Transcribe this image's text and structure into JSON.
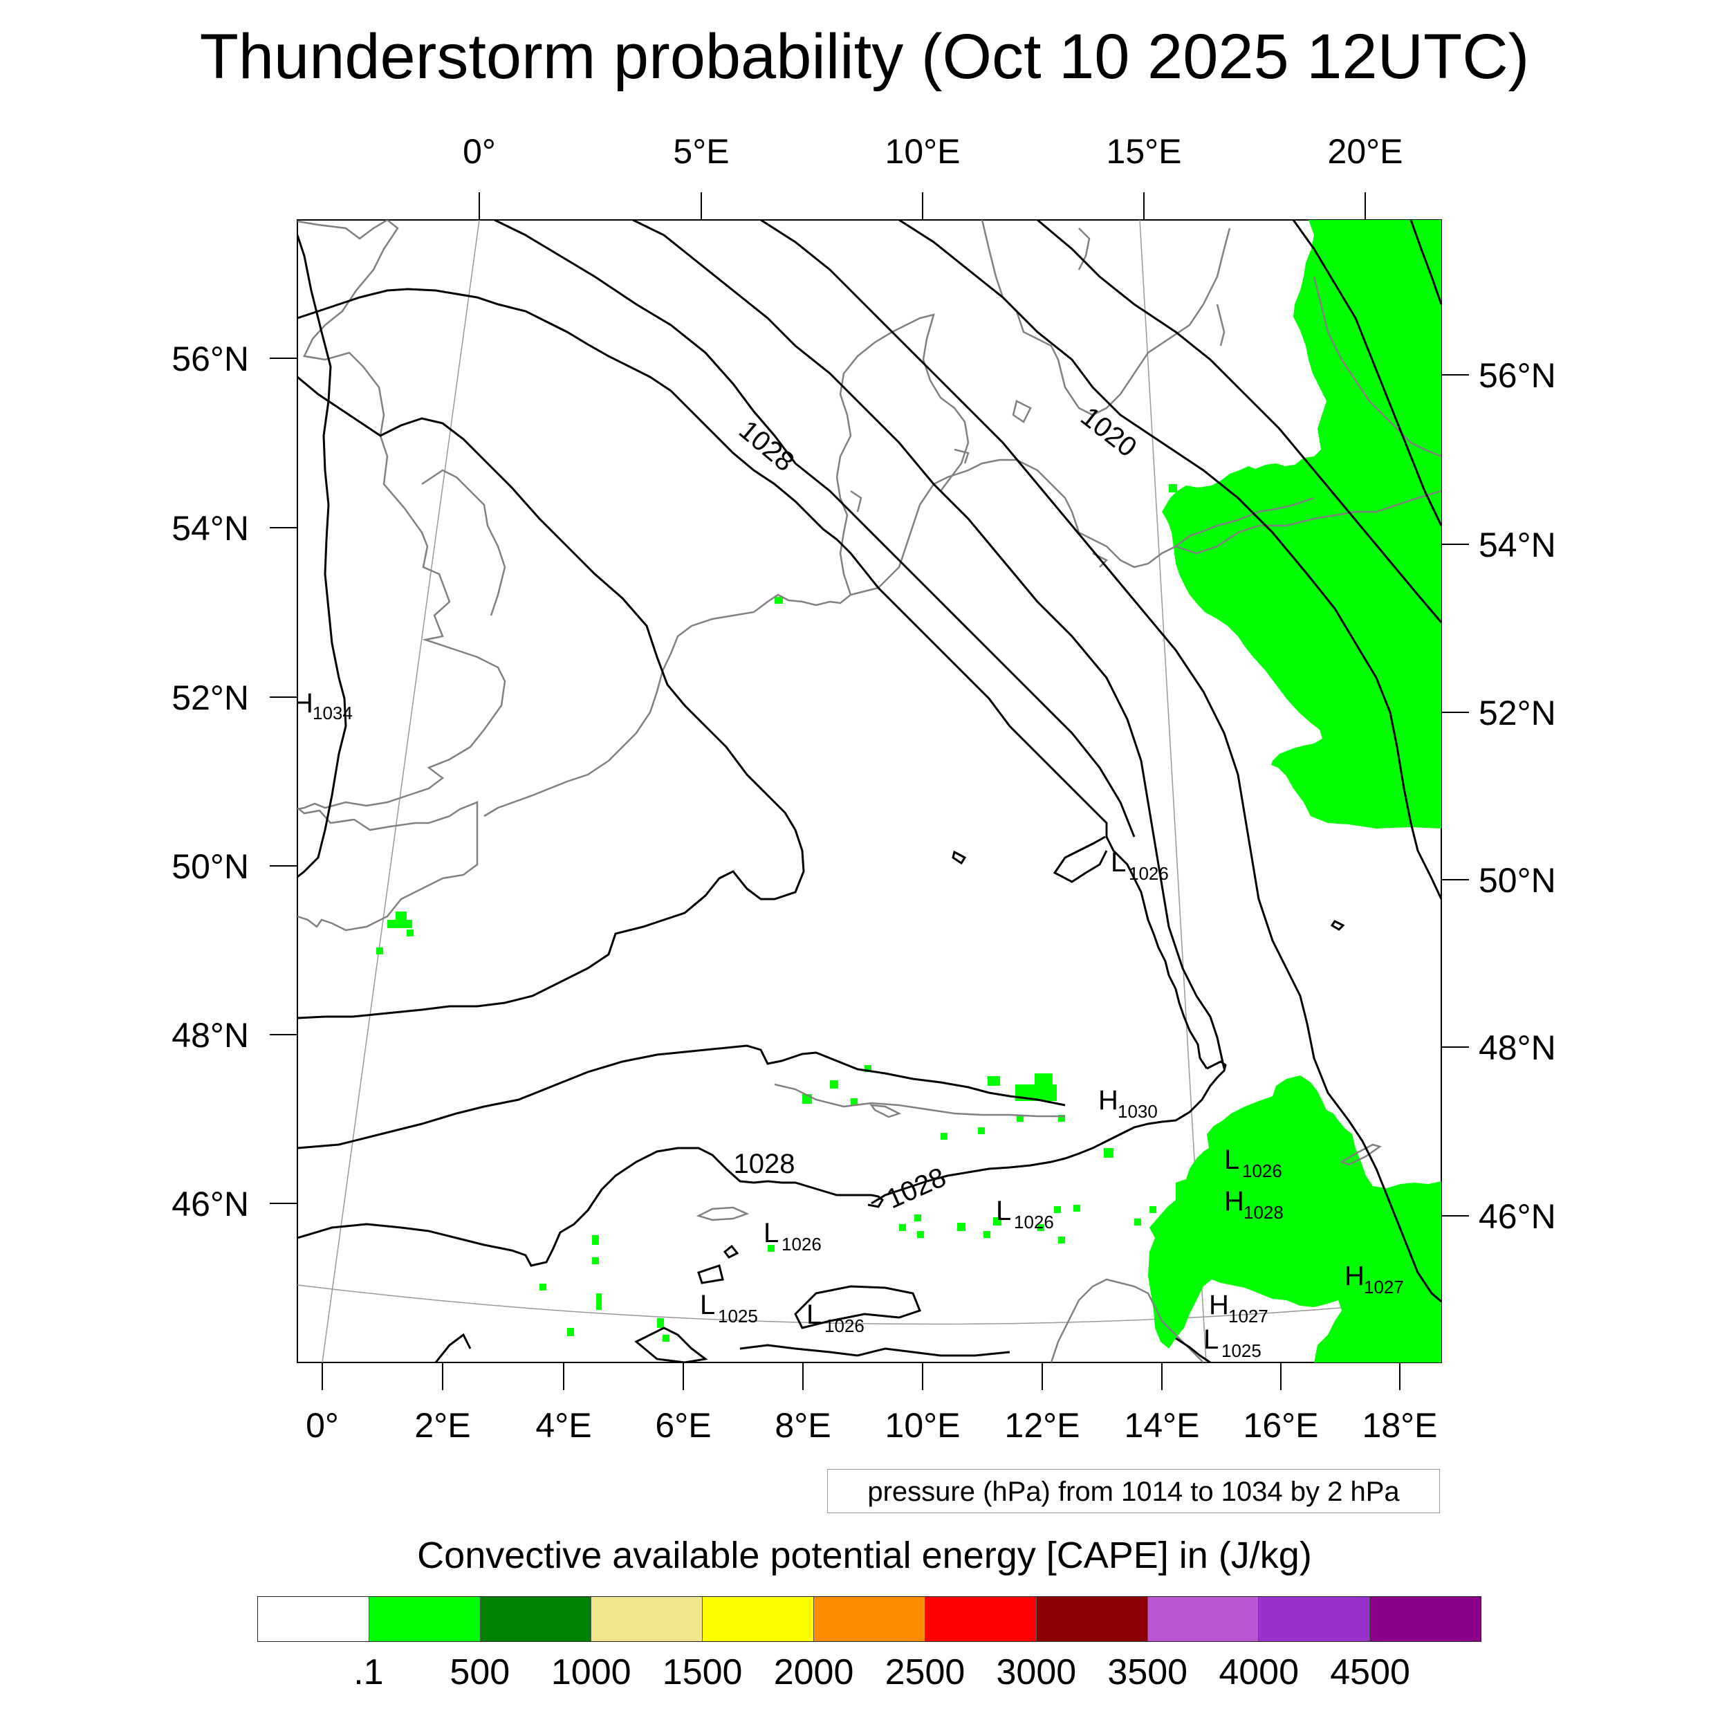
{
  "title": "Thunderstorm probability (Oct 10 2025 12UTC)",
  "axes": {
    "top_lon_labels": [
      "0°",
      "5°E",
      "10°E",
      "15°E",
      "20°E"
    ],
    "bottom_lon_labels": [
      "0°",
      "2°E",
      "4°E",
      "6°E",
      "8°E",
      "10°E",
      "12°E",
      "14°E",
      "16°E",
      "18°E"
    ],
    "left_lat_labels": [
      "56°N",
      "54°N",
      "52°N",
      "50°N",
      "48°N",
      "46°N"
    ],
    "right_lat_labels": [
      "56°N",
      "54°N",
      "52°N",
      "50°N",
      "48°N",
      "46°N"
    ]
  },
  "isobar_labels": {
    "l1028a": "1028",
    "l1020": "1020",
    "l1028b": "1028",
    "l1028c": "1028"
  },
  "pressure_centers": [
    {
      "letter": "H",
      "value": "1034"
    },
    {
      "letter": "L",
      "value": "1026"
    },
    {
      "letter": "H",
      "value": "1030"
    },
    {
      "letter": "L",
      "value": "1026"
    },
    {
      "letter": "H",
      "value": "1028"
    },
    {
      "letter": "L",
      "value": "1026"
    },
    {
      "letter": "L",
      "value": "1026"
    },
    {
      "letter": "L",
      "value": "1025"
    },
    {
      "letter": "L",
      "value": "1026"
    },
    {
      "letter": "H",
      "value": "1027"
    },
    {
      "letter": "H",
      "value": "1027"
    },
    {
      "letter": "L",
      "value": "1025"
    }
  ],
  "contour_info": "pressure (hPa) from 1014 to 1034 by 2 hPa",
  "colorbar": {
    "title": "Convective available potential energy [CAPE] in (J/kg)",
    "colors": [
      "#ffffff",
      "#00ff00",
      "#008000",
      "#f0e68c",
      "#ffff00",
      "#ff8c00",
      "#ff0000",
      "#8b0000",
      "#ba55d3",
      "#9932cc",
      "#8b008b"
    ],
    "labels": [
      ".1",
      "500",
      "1000",
      "1500",
      "2000",
      "2500",
      "3000",
      "3500",
      "4000",
      "4500"
    ]
  },
  "colors": {
    "cape_fill": "#00ff00",
    "coastline": "#808080",
    "isobar": "#000000"
  },
  "chart_data": {
    "type": "heatmap",
    "title": "Thunderstorm probability (Oct 10 2025 12UTC)",
    "field": "Convective available potential energy [CAPE]",
    "units": "J/kg",
    "contour_levels": {
      "field": "pressure",
      "units": "hPa",
      "min": 1014,
      "max": 1034,
      "step": 2
    },
    "color_levels": [
      0.1,
      500,
      1000,
      1500,
      2000,
      2500,
      3000,
      3500,
      4000,
      4500
    ],
    "lon_range": [
      -1,
      20
    ],
    "lat_range": [
      44,
      57.5
    ],
    "cape_regions": [
      {
        "class": "0.1-500",
        "approx_extent": "Poland / Baltic 50.5-57.5°N, 15-21°E"
      },
      {
        "class": "0.1-500",
        "approx_extent": "Croatia / Hungary 44-46.5°N, 14-19°E"
      },
      {
        "class": "0.1-500",
        "approx_extent": "scattered cells over Alps 45-47.5°N, 4-13°E"
      },
      {
        "class": "0.1-500",
        "approx_extent": "northern France near 49.5°N, 1°E"
      }
    ]
  }
}
